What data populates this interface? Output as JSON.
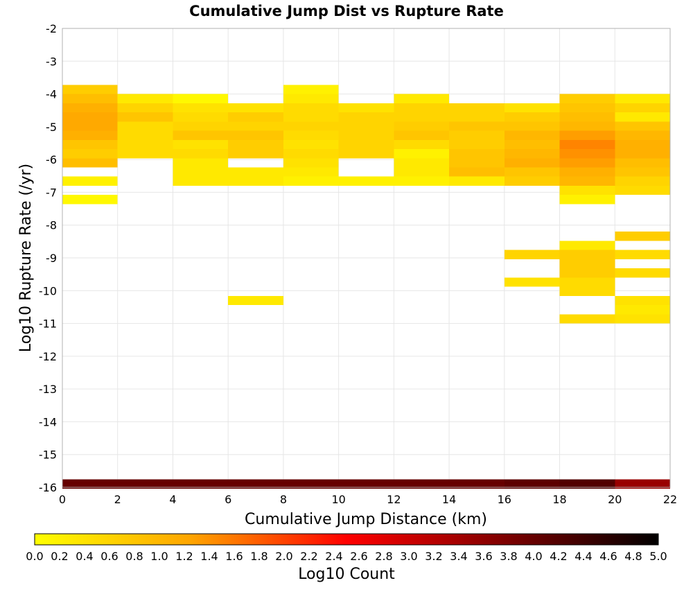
{
  "chart_data": {
    "type": "heatmap",
    "title": "Cumulative Jump Dist vs Rupture Rate",
    "xlabel": "Cumulative Jump Distance (km)",
    "ylabel": "Log10 Rupture Rate (/yr)",
    "xlim": [
      0,
      22
    ],
    "ylim": [
      -16,
      -2
    ],
    "x_ticks": [
      "0",
      "2",
      "4",
      "6",
      "8",
      "10",
      "12",
      "14",
      "16",
      "18",
      "20",
      "22"
    ],
    "y_ticks": [
      "-2",
      "-3",
      "-4",
      "-5",
      "-6",
      "-7",
      "-8",
      "-9",
      "-10",
      "-11",
      "-12",
      "-13",
      "-14",
      "-15",
      "-16"
    ],
    "x_bin_width": 2,
    "y_bin_height": 0.28,
    "grid": true,
    "colorbar": {
      "label": "Log10 Count",
      "min": 0.0,
      "max": 5.0,
      "ticks": [
        "0.0",
        "0.2",
        "0.4",
        "0.6",
        "0.8",
        "1.0",
        "1.2",
        "1.4",
        "1.6",
        "1.8",
        "2.0",
        "2.2",
        "2.4",
        "2.6",
        "2.8",
        "3.0",
        "3.2",
        "3.4",
        "3.6",
        "3.8",
        "4.0",
        "4.2",
        "4.4",
        "4.6",
        "4.8",
        "5.0"
      ],
      "colors": [
        "#ffff00",
        "#ffa500",
        "#ff0000",
        "#800000",
        "#000000"
      ],
      "placement": "bottom"
    },
    "columns": [
      {
        "x": 1,
        "cells": [
          [
            -3.86,
            0.7
          ],
          [
            -4.14,
            0.9
          ],
          [
            -4.42,
            1.1
          ],
          [
            -4.7,
            1.2
          ],
          [
            -4.98,
            1.2
          ],
          [
            -5.26,
            1.1
          ],
          [
            -5.54,
            0.8
          ],
          [
            -5.82,
            0.7
          ],
          [
            -6.1,
            0.9
          ],
          [
            -6.66,
            0.2
          ],
          [
            -7.22,
            0.1
          ],
          [
            -15.9,
            4.0
          ]
        ]
      },
      {
        "x": 3,
        "cells": [
          [
            -4.14,
            0.3
          ],
          [
            -4.42,
            0.6
          ],
          [
            -4.7,
            0.8
          ],
          [
            -4.98,
            0.5
          ],
          [
            -5.26,
            0.5
          ],
          [
            -5.54,
            0.5
          ],
          [
            -5.82,
            0.5
          ],
          [
            -15.9,
            4.0
          ]
        ]
      },
      {
        "x": 5,
        "cells": [
          [
            -4.14,
            0.1
          ],
          [
            -4.42,
            0.4
          ],
          [
            -4.7,
            0.5
          ],
          [
            -4.98,
            0.6
          ],
          [
            -5.26,
            0.8
          ],
          [
            -5.54,
            0.4
          ],
          [
            -5.82,
            0.5
          ],
          [
            -6.1,
            0.3
          ],
          [
            -6.38,
            0.3
          ],
          [
            -6.66,
            0.3
          ],
          [
            -15.9,
            4.0
          ]
        ]
      },
      {
        "x": 7,
        "cells": [
          [
            -4.42,
            0.4
          ],
          [
            -4.7,
            0.7
          ],
          [
            -4.98,
            0.6
          ],
          [
            -5.26,
            0.8
          ],
          [
            -5.54,
            0.7
          ],
          [
            -5.82,
            0.7
          ],
          [
            -6.38,
            0.3
          ],
          [
            -6.66,
            0.3
          ],
          [
            -10.3,
            0.3
          ],
          [
            -15.9,
            4.0
          ]
        ]
      },
      {
        "x": 9,
        "cells": [
          [
            -3.86,
            0.2
          ],
          [
            -4.14,
            0.3
          ],
          [
            -4.42,
            0.5
          ],
          [
            -4.7,
            0.5
          ],
          [
            -4.98,
            0.6
          ],
          [
            -5.26,
            0.5
          ],
          [
            -5.54,
            0.4
          ],
          [
            -5.82,
            0.5
          ],
          [
            -6.1,
            0.4
          ],
          [
            -6.38,
            0.3
          ],
          [
            -6.66,
            0.2
          ],
          [
            -15.9,
            4.0
          ]
        ]
      },
      {
        "x": 11,
        "cells": [
          [
            -4.42,
            0.4
          ],
          [
            -4.7,
            0.6
          ],
          [
            -4.98,
            0.6
          ],
          [
            -5.26,
            0.6
          ],
          [
            -5.54,
            0.6
          ],
          [
            -5.82,
            0.6
          ],
          [
            -6.66,
            0.2
          ],
          [
            -15.9,
            4.0
          ]
        ]
      },
      {
        "x": 13,
        "cells": [
          [
            -4.14,
            0.3
          ],
          [
            -4.42,
            0.6
          ],
          [
            -4.7,
            0.6
          ],
          [
            -4.98,
            0.7
          ],
          [
            -5.26,
            0.8
          ],
          [
            -5.54,
            0.5
          ],
          [
            -5.82,
            0.2
          ],
          [
            -6.1,
            0.3
          ],
          [
            -6.38,
            0.3
          ],
          [
            -6.66,
            0.2
          ],
          [
            -15.9,
            4.0
          ]
        ]
      },
      {
        "x": 15,
        "cells": [
          [
            -4.42,
            0.6
          ],
          [
            -4.7,
            0.6
          ],
          [
            -4.98,
            0.8
          ],
          [
            -5.26,
            0.7
          ],
          [
            -5.54,
            0.7
          ],
          [
            -5.82,
            0.8
          ],
          [
            -6.1,
            0.8
          ],
          [
            -6.38,
            0.9
          ],
          [
            -6.66,
            0.3
          ],
          [
            -15.9,
            4.0
          ]
        ]
      },
      {
        "x": 17,
        "cells": [
          [
            -4.42,
            0.4
          ],
          [
            -4.7,
            0.7
          ],
          [
            -4.98,
            0.8
          ],
          [
            -5.26,
            1.0
          ],
          [
            -5.54,
            0.9
          ],
          [
            -5.82,
            1.0
          ],
          [
            -6.1,
            1.1
          ],
          [
            -6.38,
            0.8
          ],
          [
            -6.66,
            0.7
          ],
          [
            -8.9,
            0.6
          ],
          [
            -9.74,
            0.4
          ],
          [
            -15.9,
            4.1
          ]
        ]
      },
      {
        "x": 19,
        "cells": [
          [
            -4.14,
            0.7
          ],
          [
            -4.42,
            0.8
          ],
          [
            -4.7,
            0.9
          ],
          [
            -4.98,
            1.0
          ],
          [
            -5.26,
            1.3
          ],
          [
            -5.54,
            1.5
          ],
          [
            -5.82,
            1.4
          ],
          [
            -6.1,
            1.3
          ],
          [
            -6.38,
            1.1
          ],
          [
            -6.66,
            1.0
          ],
          [
            -6.94,
            0.4
          ],
          [
            -7.22,
            0.2
          ],
          [
            -8.62,
            0.3
          ],
          [
            -8.9,
            0.7
          ],
          [
            -9.18,
            0.7
          ],
          [
            -9.46,
            0.7
          ],
          [
            -9.74,
            0.5
          ],
          [
            -10.02,
            0.5
          ],
          [
            -10.86,
            0.5
          ],
          [
            -15.9,
            4.2
          ]
        ]
      },
      {
        "x": 21,
        "cells": [
          [
            -4.14,
            0.3
          ],
          [
            -4.42,
            0.6
          ],
          [
            -4.7,
            0.3
          ],
          [
            -4.98,
            0.8
          ],
          [
            -5.26,
            1.0
          ],
          [
            -5.54,
            1.1
          ],
          [
            -5.82,
            1.1
          ],
          [
            -6.1,
            0.9
          ],
          [
            -6.38,
            0.8
          ],
          [
            -6.66,
            0.6
          ],
          [
            -6.94,
            0.5
          ],
          [
            -8.34,
            0.7
          ],
          [
            -8.9,
            0.5
          ],
          [
            -9.46,
            0.5
          ],
          [
            -10.3,
            0.4
          ],
          [
            -10.58,
            0.3
          ],
          [
            -10.86,
            0.4
          ],
          [
            -15.9,
            3.5
          ]
        ]
      }
    ]
  }
}
